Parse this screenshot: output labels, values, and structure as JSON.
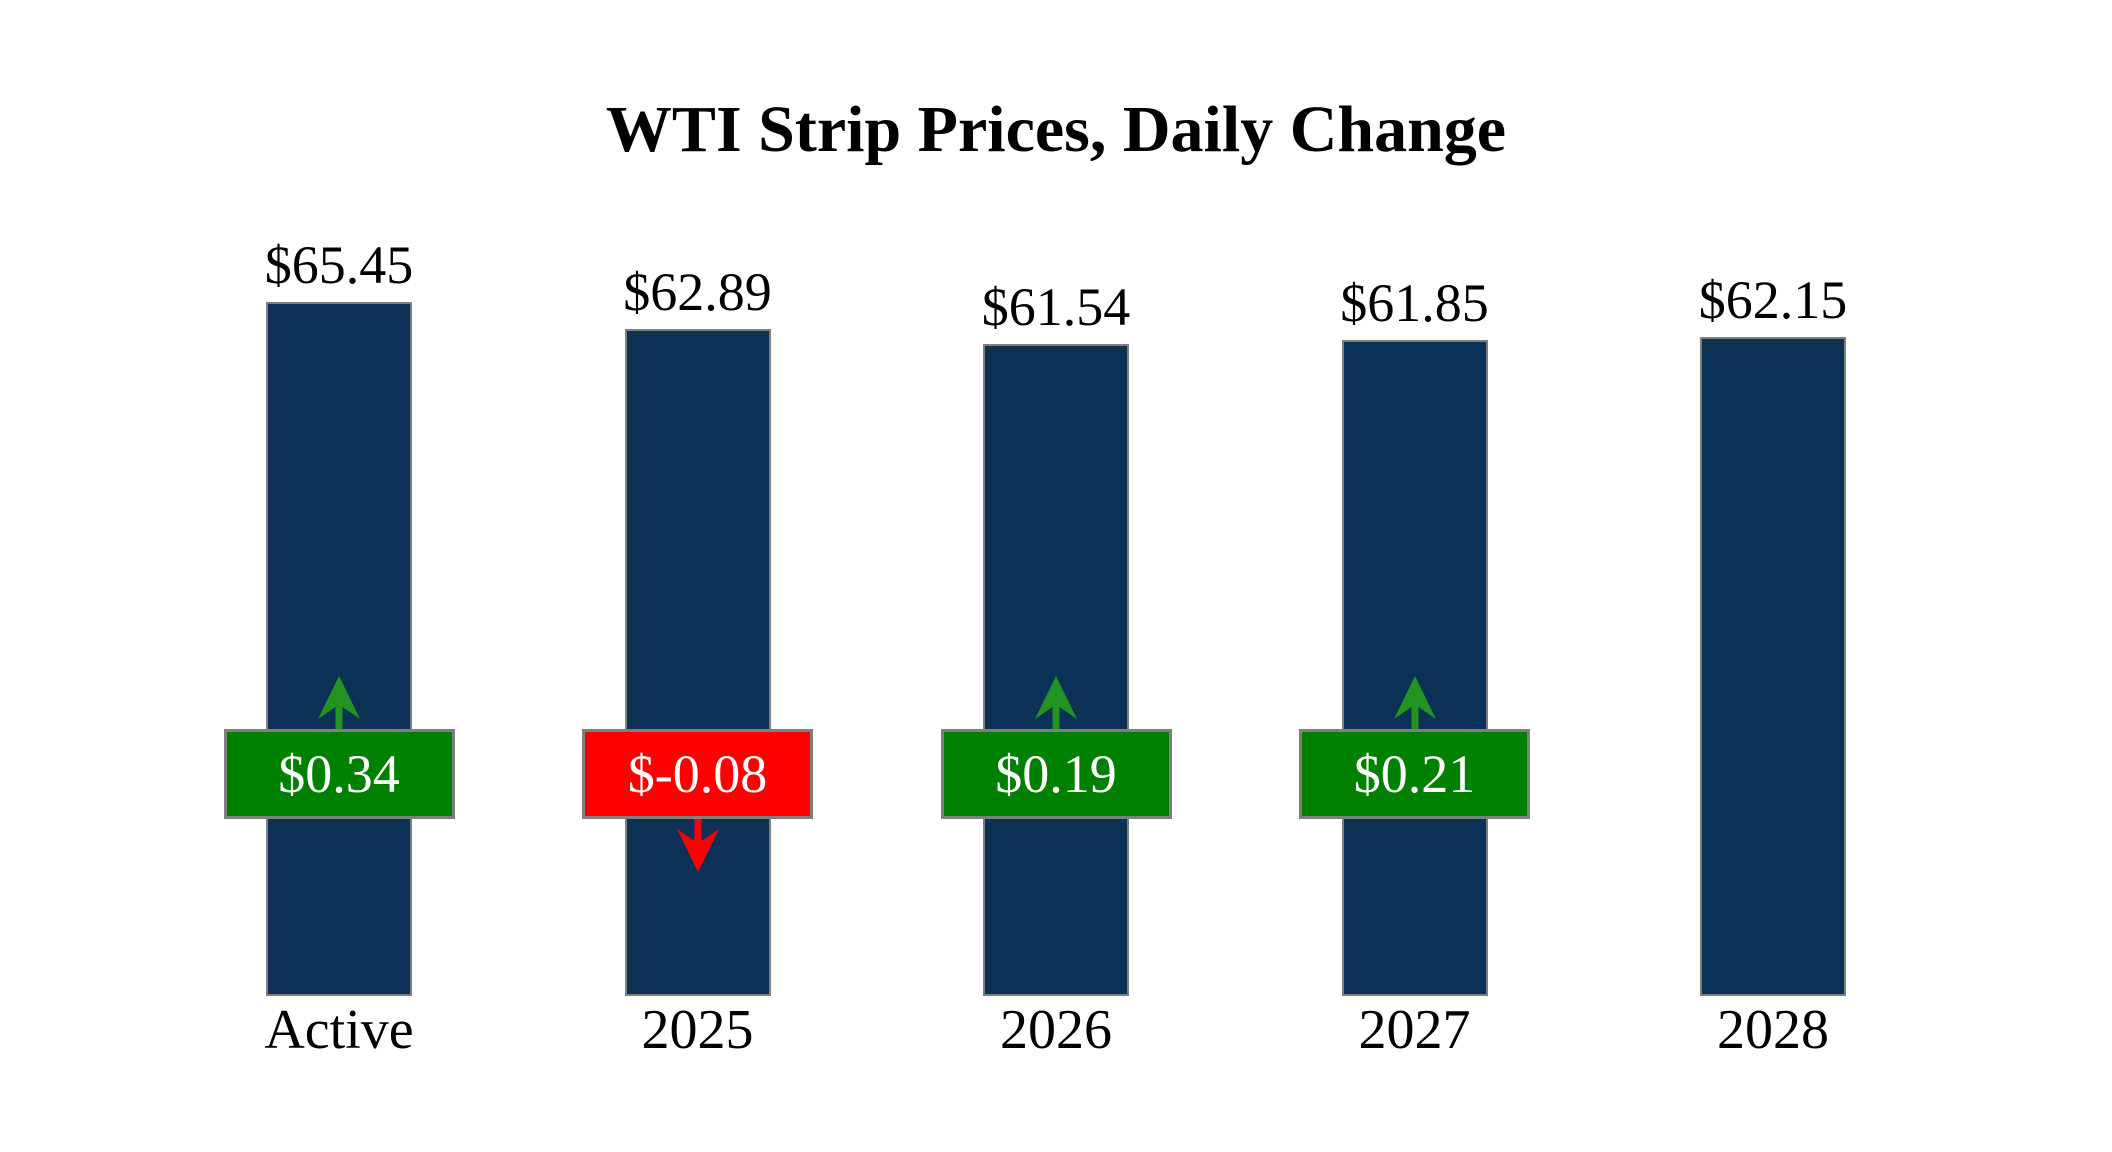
{
  "title": "WTI Strip Prices, Daily Change",
  "colors": {
    "background": "#ffffff",
    "bar_fill": "#0b3156",
    "bar_border": "#7f7f7f",
    "badge_border": "#7f7f7f",
    "badge_text": "#ffffff",
    "positive_badge": "#008000",
    "negative_badge": "#ff0000",
    "positive_arrow": "#219421",
    "negative_arrow": "#ff0000",
    "label_text": "#000000"
  },
  "chart_data": {
    "type": "bar",
    "title": "WTI Strip Prices, Daily Change",
    "categories": [
      "Active",
      "2025",
      "2026",
      "2027",
      "2028"
    ],
    "series": [
      {
        "name": "Strip Price",
        "values": [
          65.45,
          62.89,
          61.54,
          61.85,
          62.15
        ],
        "labels": [
          "$65.45",
          "$62.89",
          "$61.54",
          "$61.85",
          "$62.15"
        ]
      },
      {
        "name": "Daily Change",
        "values": [
          0.34,
          -0.08,
          0.19,
          0.21,
          null
        ],
        "labels": [
          "$0.34",
          "$-0.08",
          "$0.19",
          "$0.21",
          null
        ]
      }
    ],
    "ylim": [
      0,
      65.45
    ],
    "grid": false,
    "legend": "none",
    "axes_hidden": true
  }
}
